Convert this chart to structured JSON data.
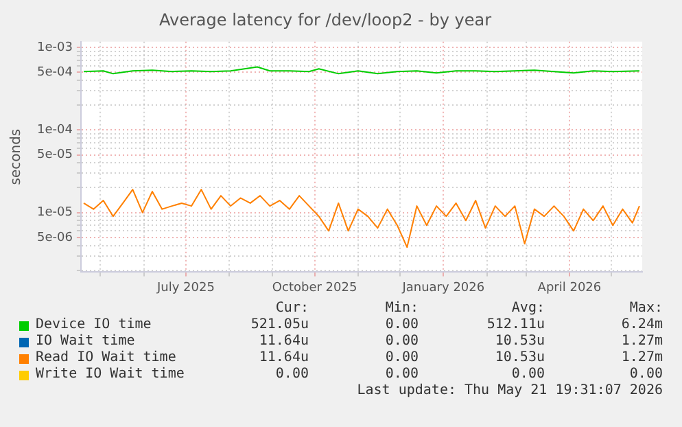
{
  "chart_data": {
    "type": "line",
    "title": "Average latency for /dev/loop2 - by year",
    "ylabel": "seconds",
    "log": "y",
    "grid": true,
    "legend": "bottom",
    "marker": "none",
    "line_style": "solid",
    "xlim": [
      "2025-04-17",
      "2026-05-23"
    ],
    "xticks": [
      {
        "value": "2025-05-01",
        "label": null
      },
      {
        "value": "2025-06-01",
        "label": null
      },
      {
        "value": "2025-07-01",
        "label": "July 2025"
      },
      {
        "value": "2025-08-01",
        "label": null
      },
      {
        "value": "2025-09-01",
        "label": null
      },
      {
        "value": "2025-10-01",
        "label": "October 2025"
      },
      {
        "value": "2025-11-01",
        "label": null
      },
      {
        "value": "2025-12-01",
        "label": null
      },
      {
        "value": "2026-01-01",
        "label": "January 2026"
      },
      {
        "value": "2026-02-01",
        "label": null
      },
      {
        "value": "2026-03-01",
        "label": null
      },
      {
        "value": "2026-04-01",
        "label": "April 2026"
      },
      {
        "value": "2026-05-01",
        "label": null
      }
    ],
    "ylim": [
      1.9e-06,
      0.00117
    ],
    "yticks": [
      {
        "value": 2e-06,
        "label": null
      },
      {
        "value": 3e-06,
        "label": null
      },
      {
        "value": 4e-06,
        "label": null
      },
      {
        "value": 5e-06,
        "label": "5e-06"
      },
      {
        "value": 6e-06,
        "label": null
      },
      {
        "value": 7e-06,
        "label": null
      },
      {
        "value": 8e-06,
        "label": null
      },
      {
        "value": 9e-06,
        "label": null
      },
      {
        "value": 1e-05,
        "label": "1e-05"
      },
      {
        "value": 2e-05,
        "label": null
      },
      {
        "value": 3e-05,
        "label": null
      },
      {
        "value": 4e-05,
        "label": null
      },
      {
        "value": 5e-05,
        "label": "5e-05"
      },
      {
        "value": 6e-05,
        "label": null
      },
      {
        "value": 7e-05,
        "label": null
      },
      {
        "value": 8e-05,
        "label": null
      },
      {
        "value": 9e-05,
        "label": null
      },
      {
        "value": 0.0001,
        "label": "1e-04"
      },
      {
        "value": 0.0002,
        "label": null
      },
      {
        "value": 0.0003,
        "label": null
      },
      {
        "value": 0.0004,
        "label": null
      },
      {
        "value": 0.0005,
        "label": "5e-04"
      },
      {
        "value": 0.0006,
        "label": null
      },
      {
        "value": 0.0007,
        "label": null
      },
      {
        "value": 0.0008,
        "label": null
      },
      {
        "value": 0.0009,
        "label": null
      },
      {
        "value": 0.001,
        "label": "1e-03"
      }
    ],
    "series": [
      {
        "name": "Device IO time",
        "color": "#00cc00",
        "x": [
          "2025-04-19",
          "2025-05-03",
          "2025-05-10",
          "2025-05-24",
          "2025-06-07",
          "2025-06-21",
          "2025-07-05",
          "2025-07-19",
          "2025-08-02",
          "2025-08-21",
          "2025-08-30",
          "2025-09-13",
          "2025-09-27",
          "2025-10-04",
          "2025-10-18",
          "2025-11-01",
          "2025-11-15",
          "2025-11-29",
          "2025-12-13",
          "2025-12-27",
          "2026-01-10",
          "2026-01-24",
          "2026-02-07",
          "2026-02-21",
          "2026-03-07",
          "2026-03-21",
          "2026-04-04",
          "2026-04-18",
          "2026-05-02",
          "2026-05-21"
        ],
        "values": [
          0.00051,
          0.00052,
          0.00048,
          0.00052,
          0.00053,
          0.00051,
          0.00052,
          0.00051,
          0.00052,
          0.00058,
          0.00052,
          0.00052,
          0.00051,
          0.00055,
          0.00048,
          0.00052,
          0.00048,
          0.00051,
          0.00052,
          0.00049,
          0.00052,
          0.00052,
          0.00051,
          0.00052,
          0.00053,
          0.00051,
          0.00049,
          0.00052,
          0.00051,
          0.00052
        ]
      },
      {
        "name": "IO Wait time",
        "color": "#0066b3"
      },
      {
        "name": "Read IO Wait time",
        "color": "#ff8000",
        "x": [
          "2025-04-19",
          "2025-04-26",
          "2025-05-03",
          "2025-05-10",
          "2025-05-17",
          "2025-05-24",
          "2025-05-31",
          "2025-06-07",
          "2025-06-14",
          "2025-06-21",
          "2025-06-28",
          "2025-07-05",
          "2025-07-12",
          "2025-07-19",
          "2025-07-26",
          "2025-08-02",
          "2025-08-09",
          "2025-08-16",
          "2025-08-23",
          "2025-08-30",
          "2025-09-06",
          "2025-09-13",
          "2025-09-20",
          "2025-09-27",
          "2025-10-04",
          "2025-10-11",
          "2025-10-18",
          "2025-10-25",
          "2025-11-01",
          "2025-11-08",
          "2025-11-15",
          "2025-11-22",
          "2025-11-29",
          "2025-12-06",
          "2025-12-13",
          "2025-12-20",
          "2025-12-27",
          "2026-01-03",
          "2026-01-10",
          "2026-01-17",
          "2026-01-24",
          "2026-01-31",
          "2026-02-07",
          "2026-02-14",
          "2026-02-21",
          "2026-02-28",
          "2026-03-07",
          "2026-03-14",
          "2026-03-21",
          "2026-03-28",
          "2026-04-04",
          "2026-04-11",
          "2026-04-18",
          "2026-04-25",
          "2026-05-02",
          "2026-05-09",
          "2026-05-16",
          "2026-05-21"
        ],
        "values": [
          1.3e-05,
          1.1e-05,
          1.4e-05,
          9e-06,
          1.3e-05,
          1.9e-05,
          1e-05,
          1.8e-05,
          1.1e-05,
          1.2e-05,
          1.3e-05,
          1.2e-05,
          1.9e-05,
          1.1e-05,
          1.6e-05,
          1.2e-05,
          1.5e-05,
          1.3e-05,
          1.6e-05,
          1.2e-05,
          1.4e-05,
          1.1e-05,
          1.6e-05,
          1.2e-05,
          9e-06,
          6e-06,
          1.3e-05,
          6e-06,
          1.1e-05,
          9e-06,
          6.5e-06,
          1.1e-05,
          7e-06,
          3.8e-06,
          1.2e-05,
          7e-06,
          1.2e-05,
          9e-06,
          1.3e-05,
          8e-06,
          1.4e-05,
          6.5e-06,
          1.2e-05,
          9e-06,
          1.2e-05,
          4.2e-06,
          1.1e-05,
          9e-06,
          1.2e-05,
          9e-06,
          6e-06,
          1.1e-05,
          8e-06,
          1.2e-05,
          7e-06,
          1.1e-05,
          7.5e-06,
          1.2e-05
        ]
      },
      {
        "name": "Write IO Wait time",
        "color": "#ffcc00"
      }
    ],
    "annotations": [
      "Cur:",
      "Min:",
      "Avg:",
      "Max:",
      "521.05u",
      "0.00",
      "512.11u",
      "6.24m",
      "11.64u",
      "0.00",
      "10.53u",
      "1.27m",
      "11.64u",
      "0.00",
      "10.53u",
      "1.27m",
      "0.00",
      "0.00",
      "0.00",
      "0.00",
      "Last update: Thu May 21 19:31:07 2026"
    ]
  }
}
